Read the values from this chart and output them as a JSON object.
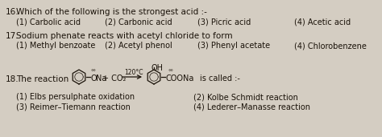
{
  "background_color": "#d4cdc2",
  "q16_number": "16.",
  "q16_text": "Which of the following is the strongest acid :-",
  "q16_opt1": "(1) Carbolic acid",
  "q16_opt2": "(2) Carbonic acid",
  "q16_opt3": "(3) Picric acid",
  "q16_opt4": "(4) Acetic acid",
  "q17_number": "17.",
  "q17_text": "Sodium phenate reacts with acetyl chloride to form",
  "q17_opt1": "(1) Methyl benzoate",
  "q17_opt2": "(2) Acetyl phenol",
  "q17_opt3": "(3) Phenyl acetate",
  "q17_opt4": "(4) Chlorobenzene",
  "q18_number": "18.",
  "q18_text": "The reaction",
  "q18_called": "is called :-",
  "q18_arrow_label": "120°C",
  "q18_oh": "OH",
  "q18_ona": "ONa",
  "q18_co2": "+ CO₂",
  "q18_coona": "COONa",
  "q18_opt1": "(1) Elbs persulphate oxidation",
  "q18_opt2": "(2) Kolbe Schmidt reaction",
  "q18_opt3": "(3) Reimer–Tiemann reaction",
  "q18_opt4": "(4) Lederer–Manasse reaction",
  "fs": 7.0,
  "fs_q": 7.5,
  "text_color": "#1a1209"
}
